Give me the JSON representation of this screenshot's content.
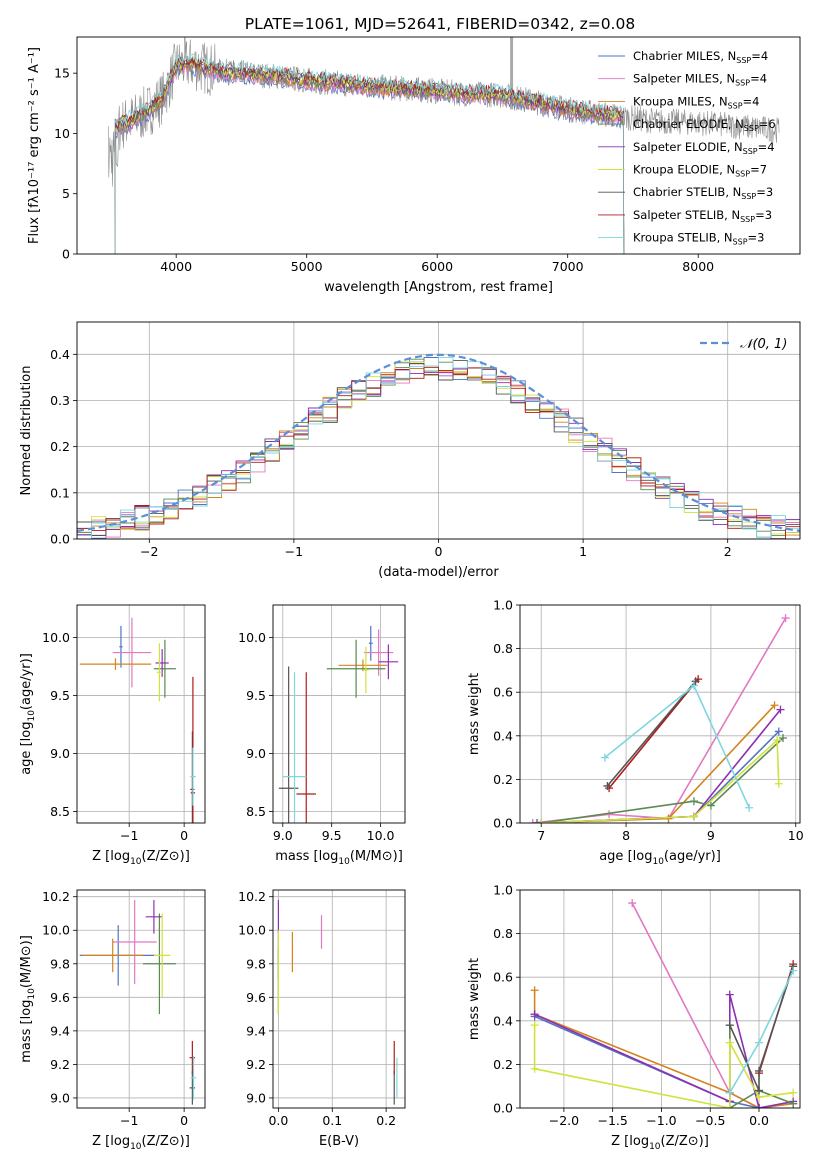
{
  "figure": {
    "title": "PLATE=1061, MJD=52641, FIBERID=0342, z=0.08",
    "series_colors": {
      "chabrier_miles": "#4f75c4",
      "salpeter_miles": "#e377c2",
      "kroupa_miles": "#d4841e",
      "chabrier_elodie": "#5b8a52",
      "salpeter_elodie": "#8e2fb3",
      "kroupa_elodie": "#d1e23b",
      "chabrier_stelib": "#555555",
      "salpeter_stelib": "#b01c1c",
      "kroupa_stelib": "#7fd6df",
      "data_gray": "#8c8c8c"
    }
  },
  "chart_data": [
    {
      "id": "spectrum",
      "type": "line",
      "xlabel": "wavelength [Angstrom, rest frame]",
      "ylabel": "Flux [fλ10⁻¹⁷ erg cm⁻² s⁻¹ A⁻¹]",
      "xlim": [
        3240,
        8780
      ],
      "ylim": [
        0,
        18
      ],
      "xticks": [
        4000,
        5000,
        6000,
        7000,
        8000
      ],
      "yticks": [
        0,
        5,
        10,
        15
      ],
      "grid": false,
      "legend_position": "right",
      "legend": [
        {
          "key": "chabrier_miles",
          "main": "Chabrier MILES, N",
          "sub": "SSP",
          "tail": "=4"
        },
        {
          "key": "salpeter_miles",
          "main": "Salpeter MILES, N",
          "sub": "SSP",
          "tail": "=4"
        },
        {
          "key": "kroupa_miles",
          "main": "Kroupa MILES, N",
          "sub": "SSP",
          "tail": "=4"
        },
        {
          "key": "chabrier_elodie",
          "main": "Chabrier ELODIE, N",
          "sub": "SSP",
          "tail": "=6"
        },
        {
          "key": "salpeter_elodie",
          "main": "Salpeter ELODIE, N",
          "sub": "SSP",
          "tail": "=4"
        },
        {
          "key": "kroupa_elodie",
          "main": "Kroupa ELODIE, N",
          "sub": "SSP",
          "tail": "=7"
        },
        {
          "key": "chabrier_stelib",
          "main": "Chabrier STELIB, N",
          "sub": "SSP",
          "tail": "=3"
        },
        {
          "key": "salpeter_stelib",
          "main": "Salpeter STELIB, N",
          "sub": "SSP",
          "tail": "=3"
        },
        {
          "key": "kroupa_stelib",
          "main": "Kroupa STELIB, N",
          "sub": "SSP",
          "tail": "=3"
        }
      ],
      "continuum": {
        "x": [
          3500,
          3600,
          3700,
          3800,
          3900,
          4000,
          4100,
          4300,
          4500,
          4800,
          5000,
          5300,
          5600,
          5900,
          6200,
          6500,
          6800,
          7000,
          7200,
          7400,
          7700,
          8000,
          8300,
          8600
        ],
        "y": [
          10.2,
          10.8,
          11.3,
          12.0,
          13.0,
          15.6,
          15.8,
          15.2,
          15.0,
          14.7,
          14.4,
          14.1,
          13.8,
          13.6,
          13.3,
          13.2,
          12.5,
          12.0,
          11.7,
          11.4,
          11.0,
          10.9,
          10.6,
          10.3
        ]
      },
      "model_range": [
        3530,
        7430
      ],
      "data_range": [
        3480,
        8620
      ]
    },
    {
      "id": "residuals",
      "type": "bar",
      "xlabel": "(data-model)/error",
      "ylabel": "Normed distribution",
      "xlim": [
        -2.5,
        2.5
      ],
      "ylim": [
        0,
        0.47
      ],
      "xticks": [
        -2,
        -1,
        0,
        1,
        2
      ],
      "yticks": [
        0.0,
        0.1,
        0.2,
        0.3,
        0.4
      ],
      "grid": true,
      "legend_position": "top-right",
      "legend": "𝒩(0, 1)",
      "bins": [
        -2.5,
        2.5,
        50
      ]
    },
    {
      "id": "age-vs-metallicity",
      "type": "scatter",
      "xlabel_main": "Z [log",
      "xlabel_sub": "10",
      "xlabel_tail": "(Z/Z⊙)]",
      "ylabel_main": "age  [log",
      "ylabel_sub": "10",
      "ylabel_tail": "(age/yr)]",
      "xlim": [
        -1.95,
        0.38
      ],
      "ylim": [
        8.4,
        10.28
      ],
      "xticks": [
        -1,
        0
      ],
      "yticks": [
        8.5,
        9.0,
        9.5,
        10.0
      ],
      "grid": true,
      "points": [
        {
          "s": "chabrier_miles",
          "x": -1.15,
          "y": 9.92,
          "xe": 0.03,
          "ye": 0.18
        },
        {
          "s": "salpeter_miles",
          "x": -0.95,
          "y": 9.87,
          "xe": 0.35,
          "ye": 0.3
        },
        {
          "s": "kroupa_miles",
          "x": -1.25,
          "y": 9.77,
          "xe": 0.65,
          "ye": 0.05
        },
        {
          "s": "chabrier_elodie",
          "x": -0.35,
          "y": 9.73,
          "xe": 0.2,
          "ye": 0.25
        },
        {
          "s": "salpeter_elodie",
          "x": -0.4,
          "y": 9.78,
          "xe": 0.12,
          "ye": 0.12
        },
        {
          "s": "kroupa_elodie",
          "x": -0.45,
          "y": 9.7,
          "xe": 0.05,
          "ye": 0.25
        },
        {
          "s": "chabrier_stelib",
          "x": 0.15,
          "y": 8.69,
          "xe": 0.04,
          "ye": 0.5
        },
        {
          "s": "salpeter_stelib",
          "x": 0.16,
          "y": 8.66,
          "xe": 0.04,
          "ye": 1.0
        },
        {
          "s": "kroupa_stelib",
          "x": 0.16,
          "y": 8.8,
          "xe": 0.05,
          "ye": 0.25
        }
      ]
    },
    {
      "id": "age-vs-mass",
      "type": "scatter",
      "xlabel_main": "mass [log",
      "xlabel_sub": "10",
      "xlabel_tail": "(M/M⊙)]",
      "xlim": [
        8.9,
        10.25
      ],
      "ylim": [
        8.4,
        10.28
      ],
      "xticks": [
        9.0,
        9.5,
        10.0
      ],
      "yticks": [
        8.5,
        9.0,
        9.5,
        10.0
      ],
      "grid": true,
      "points": [
        {
          "s": "chabrier_miles",
          "x": 9.9,
          "y": 9.95,
          "xe": 0.02,
          "ye": 0.15
        },
        {
          "s": "salpeter_miles",
          "x": 9.98,
          "y": 9.87,
          "xe": 0.15,
          "ye": 0.2
        },
        {
          "s": "kroupa_miles",
          "x": 9.82,
          "y": 9.76,
          "xe": 0.25,
          "ye": 0.05
        },
        {
          "s": "chabrier_elodie",
          "x": 9.75,
          "y": 9.73,
          "xe": 0.3,
          "ye": 0.25
        },
        {
          "s": "salpeter_elodie",
          "x": 10.08,
          "y": 9.79,
          "xe": 0.1,
          "ye": 0.15
        },
        {
          "s": "kroupa_elodie",
          "x": 9.85,
          "y": 9.72,
          "xe": 0.03,
          "ye": 0.2
        },
        {
          "s": "chabrier_stelib",
          "x": 9.06,
          "y": 8.7,
          "xe": 0.1,
          "ye": 1.05
        },
        {
          "s": "salpeter_stelib",
          "x": 9.24,
          "y": 8.65,
          "xe": 0.1,
          "ye": 1.05
        },
        {
          "s": "kroupa_stelib",
          "x": 9.12,
          "y": 8.8,
          "xe": 0.12,
          "ye": 0.9
        }
      ]
    },
    {
      "id": "mass-weight-vs-age",
      "type": "line",
      "xlabel_main": "age  [log",
      "xlabel_sub": "10",
      "xlabel_tail": "(age/yr)]",
      "ylabel": "mass weight",
      "xlim": [
        6.75,
        10.05
      ],
      "ylim": [
        0,
        1.0
      ],
      "xticks": [
        7,
        8,
        9,
        10
      ],
      "yticks": [
        0.0,
        0.2,
        0.4,
        0.6,
        0.8,
        1.0
      ],
      "grid": true,
      "lines": [
        {
          "s": "salpeter_miles",
          "pts": [
            [
              6.9,
              0.0
            ],
            [
              7.8,
              0.04
            ],
            [
              8.5,
              0.02
            ],
            [
              9.88,
              0.94
            ]
          ]
        },
        {
          "s": "kroupa_miles",
          "pts": [
            [
              6.95,
              0.0
            ],
            [
              8.5,
              0.02
            ],
            [
              9.75,
              0.54
            ]
          ]
        },
        {
          "s": "chabrier_miles",
          "pts": [
            [
              6.95,
              0.0
            ],
            [
              8.8,
              0.03
            ],
            [
              9.8,
              0.42
            ]
          ]
        },
        {
          "s": "salpeter_elodie",
          "pts": [
            [
              7.0,
              0.0
            ],
            [
              8.8,
              0.03
            ],
            [
              9.82,
              0.52
            ]
          ]
        },
        {
          "s": "chabrier_elodie",
          "pts": [
            [
              7.0,
              0.0
            ],
            [
              8.8,
              0.1
            ],
            [
              9.0,
              0.08
            ],
            [
              9.85,
              0.39
            ]
          ]
        },
        {
          "s": "kroupa_elodie",
          "pts": [
            [
              7.0,
              0.0
            ],
            [
              8.8,
              0.03
            ],
            [
              9.78,
              0.38
            ],
            [
              9.8,
              0.18
            ]
          ]
        },
        {
          "s": "salpeter_stelib",
          "pts": [
            [
              7.8,
              0.16
            ],
            [
              8.85,
              0.66
            ]
          ]
        },
        {
          "s": "chabrier_stelib",
          "pts": [
            [
              7.78,
              0.17
            ],
            [
              8.82,
              0.65
            ]
          ]
        },
        {
          "s": "kroupa_stelib",
          "pts": [
            [
              7.75,
              0.3
            ],
            [
              8.8,
              0.63
            ],
            [
              9.45,
              0.07
            ]
          ]
        }
      ]
    },
    {
      "id": "mass-vs-metallicity",
      "type": "scatter",
      "xlabel_main": "Z [log",
      "xlabel_sub": "10",
      "xlabel_tail": "(Z/Z⊙)]",
      "ylabel_main": "mass [log",
      "ylabel_sub": "10",
      "ylabel_tail": "(M/M⊙)]",
      "xlim": [
        -1.95,
        0.38
      ],
      "ylim": [
        8.94,
        10.24
      ],
      "xticks": [
        -1,
        0
      ],
      "yticks": [
        9.0,
        9.2,
        9.4,
        9.6,
        9.8,
        10.0,
        10.2
      ],
      "grid": true,
      "points": [
        {
          "s": "chabrier_miles",
          "x": -1.2,
          "y": 9.85,
          "xe": 0.7,
          "ye": 0.18
        },
        {
          "s": "salpeter_miles",
          "x": -0.9,
          "y": 9.93,
          "xe": 0.4,
          "ye": 0.25
        },
        {
          "s": "kroupa_miles",
          "x": -1.3,
          "y": 9.85,
          "xe": 0.55,
          "ye": 0.1
        },
        {
          "s": "chabrier_elodie",
          "x": -0.45,
          "y": 9.8,
          "xe": 0.3,
          "ye": 0.3
        },
        {
          "s": "salpeter_elodie",
          "x": -0.55,
          "y": 10.08,
          "xe": 0.15,
          "ye": 0.1
        },
        {
          "s": "kroupa_elodie",
          "x": -0.4,
          "y": 9.85,
          "xe": 0.15,
          "ye": 0.25
        },
        {
          "s": "chabrier_stelib",
          "x": 0.15,
          "y": 9.06,
          "xe": 0.05,
          "ye": 0.1
        },
        {
          "s": "salpeter_stelib",
          "x": 0.15,
          "y": 9.24,
          "xe": 0.05,
          "ye": 0.1
        },
        {
          "s": "kroupa_stelib",
          "x": 0.17,
          "y": 9.12,
          "xe": 0.05,
          "ye": 0.13
        }
      ]
    },
    {
      "id": "mass-vs-ebv",
      "type": "scatter",
      "xlabel": "E(B-V)",
      "xlim": [
        -0.01,
        0.235
      ],
      "ylim": [
        8.94,
        10.24
      ],
      "xticks": [
        0.0,
        0.1,
        0.2
      ],
      "yticks": [
        9.0,
        9.2,
        9.4,
        9.6,
        9.8,
        10.0,
        10.2
      ],
      "grid": true,
      "points": [
        {
          "s": "chabrier_miles",
          "x": 0.0,
          "y": 9.85,
          "xe": 0,
          "ye": 0.15
        },
        {
          "s": "salpeter_miles",
          "x": 0.08,
          "y": 9.99,
          "xe": 0,
          "ye": 0.1
        },
        {
          "s": "kroupa_miles",
          "x": 0.026,
          "y": 9.87,
          "xe": 0,
          "ye": 0.12
        },
        {
          "s": "chabrier_elodie",
          "x": 0.0,
          "y": 9.7,
          "xe": 0,
          "ye": 0.2
        },
        {
          "s": "salpeter_elodie",
          "x": 0.0,
          "y": 10.08,
          "xe": 0,
          "ye": 0.1
        },
        {
          "s": "kroupa_elodie",
          "x": 0.0,
          "y": 9.75,
          "xe": 0,
          "ye": 0.25
        },
        {
          "s": "chabrier_stelib",
          "x": 0.215,
          "y": 9.06,
          "xe": 0,
          "ye": 0.1
        },
        {
          "s": "salpeter_stelib",
          "x": 0.215,
          "y": 9.24,
          "xe": 0,
          "ye": 0.1
        },
        {
          "s": "kroupa_stelib",
          "x": 0.22,
          "y": 9.12,
          "xe": 0,
          "ye": 0.12
        }
      ]
    },
    {
      "id": "mass-weight-vs-metallicity",
      "type": "line",
      "xlabel_main": "Z [log",
      "xlabel_sub": "10",
      "xlabel_tail": "(Z/Z⊙)]",
      "ylabel": "mass weight",
      "xlim": [
        -2.45,
        0.42
      ],
      "ylim": [
        0,
        1.0
      ],
      "xticks": [
        -2.0,
        -1.5,
        -1.0,
        -0.5,
        0.0
      ],
      "yticks": [
        0.0,
        0.2,
        0.4,
        0.6,
        0.8,
        1.0
      ],
      "grid": true,
      "lines": [
        {
          "s": "salpeter_miles",
          "pts": [
            [
              -1.3,
              0.94
            ],
            [
              -0.3,
              0.07
            ],
            [
              0.0,
              0.0
            ],
            [
              0.35,
              0.02
            ]
          ]
        },
        {
          "s": "kroupa_miles",
          "pts": [
            [
              -2.3,
              0.54
            ],
            [
              -2.3,
              0.43
            ],
            [
              -0.3,
              0.07
            ],
            [
              0.0,
              0.0
            ],
            [
              0.35,
              0.02
            ]
          ]
        },
        {
          "s": "chabrier_miles",
          "pts": [
            [
              -2.3,
              0.42
            ],
            [
              -0.3,
              0.03
            ],
            [
              0.0,
              0.0
            ]
          ]
        },
        {
          "s": "salpeter_elodie",
          "pts": [
            [
              -2.3,
              0.43
            ],
            [
              -0.3,
              0.03
            ],
            [
              -0.3,
              0.52
            ],
            [
              0.0,
              0.0
            ],
            [
              0.35,
              0.03
            ]
          ]
        },
        {
          "s": "chabrier_elodie",
          "pts": [
            [
              -0.3,
              0.38
            ],
            [
              -0.3,
              0.0
            ],
            [
              0.0,
              0.08
            ],
            [
              0.35,
              0.02
            ]
          ]
        },
        {
          "s": "kroupa_elodie",
          "pts": [
            [
              -2.3,
              0.38
            ],
            [
              -2.3,
              0.18
            ],
            [
              -0.3,
              0.0
            ],
            [
              -0.3,
              0.3
            ],
            [
              0.0,
              0.05
            ],
            [
              0.35,
              0.07
            ]
          ]
        },
        {
          "s": "salpeter_stelib",
          "pts": [
            [
              0.0,
              0.16
            ],
            [
              0.35,
              0.66
            ]
          ]
        },
        {
          "s": "chabrier_stelib",
          "pts": [
            [
              -0.3,
              0.38
            ],
            [
              0.0,
              0.08
            ],
            [
              0.0,
              0.17
            ],
            [
              0.35,
              0.65
            ]
          ]
        },
        {
          "s": "kroupa_stelib",
          "pts": [
            [
              -0.3,
              0.07
            ],
            [
              0.0,
              0.3
            ],
            [
              0.35,
              0.63
            ]
          ]
        }
      ]
    }
  ]
}
